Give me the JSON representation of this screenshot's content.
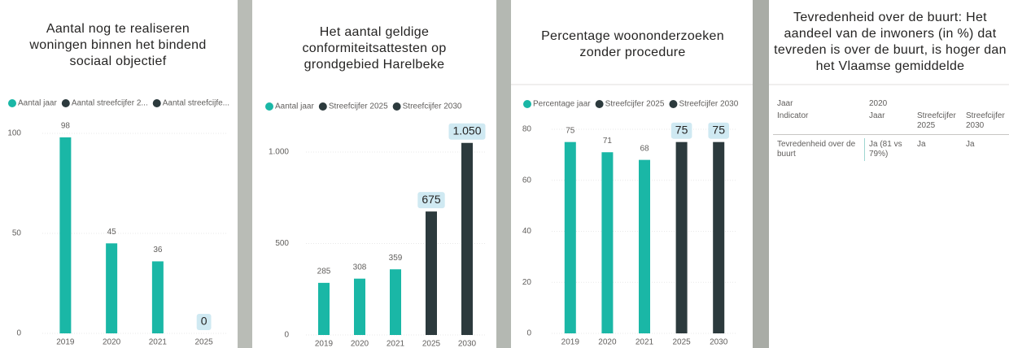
{
  "chart_data": [
    {
      "type": "bar",
      "title": "Aantal nog te realiseren woningen binnen het bindend sociaal objectief",
      "categories": [
        "2019",
        "2020",
        "2021",
        "2025"
      ],
      "series": [
        {
          "name": "Aantal jaar",
          "color": "#1ab7a6",
          "values": [
            98,
            45,
            36,
            null
          ]
        },
        {
          "name": "Aantal streefcijfer 2...",
          "color": "#2c3a3d",
          "values": [
            null,
            null,
            null,
            0
          ]
        },
        {
          "name": "Aantal streefcijfe...",
          "color": "#2c3a3d",
          "values": [
            null,
            null,
            null,
            null
          ]
        }
      ],
      "ylim": [
        0,
        100
      ],
      "yticks": [
        0,
        50,
        100
      ],
      "legend": "top-left"
    },
    {
      "type": "bar",
      "title": "Het aantal geldige conformiteitsattesten op grondgebied Harelbeke",
      "categories": [
        "2019",
        "2020",
        "2021",
        "2025",
        "2030"
      ],
      "series": [
        {
          "name": "Aantal jaar",
          "color": "#1ab7a6",
          "values": [
            285,
            308,
            359,
            null,
            null
          ]
        },
        {
          "name": "Streefcijfer 2025",
          "color": "#2c3a3d",
          "values": [
            null,
            null,
            null,
            675,
            null
          ]
        },
        {
          "name": "Streefcijfer 2030",
          "color": "#2c3a3d",
          "values": [
            null,
            null,
            null,
            null,
            1050
          ],
          "value_labels": [
            null,
            null,
            null,
            null,
            "1.050"
          ]
        }
      ],
      "ylim": [
        0,
        1100
      ],
      "yticks": [
        0,
        500,
        {
          "value": 1000,
          "label": "1.000"
        }
      ],
      "legend": "top-left"
    },
    {
      "type": "bar",
      "title": "Percentage woononderzoeken zonder procedure",
      "categories": [
        "2019",
        "2020",
        "2021",
        "2025",
        "2030"
      ],
      "series": [
        {
          "name": "Percentage jaar",
          "color": "#1ab7a6",
          "values": [
            75,
            71,
            68,
            null,
            null
          ]
        },
        {
          "name": "Streefcijfer 2025",
          "color": "#2c3a3d",
          "values": [
            null,
            null,
            null,
            75,
            null
          ]
        },
        {
          "name": "Streefcijfer 2030",
          "color": "#2c3a3d",
          "values": [
            null,
            null,
            null,
            null,
            75
          ]
        }
      ],
      "ylim": [
        0,
        80
      ],
      "yticks": [
        0,
        20,
        40,
        60,
        80
      ],
      "legend": "top-left"
    }
  ],
  "table": {
    "title": "Tevredenheid over de buurt: Het aandeel van de inwoners (in %) dat tevreden is over de buurt, is hoger dan het Vlaamse gemiddelde",
    "header": [
      [
        "Jaar",
        "2020"
      ],
      [
        "Indicator",
        "Jaar",
        "Streefcijfer 2025",
        "Streefcijfer 2030"
      ]
    ],
    "rows": [
      [
        "Tevredenheid over de buurt",
        "Ja (81 vs 79%)",
        "Ja",
        "Ja"
      ]
    ]
  }
}
